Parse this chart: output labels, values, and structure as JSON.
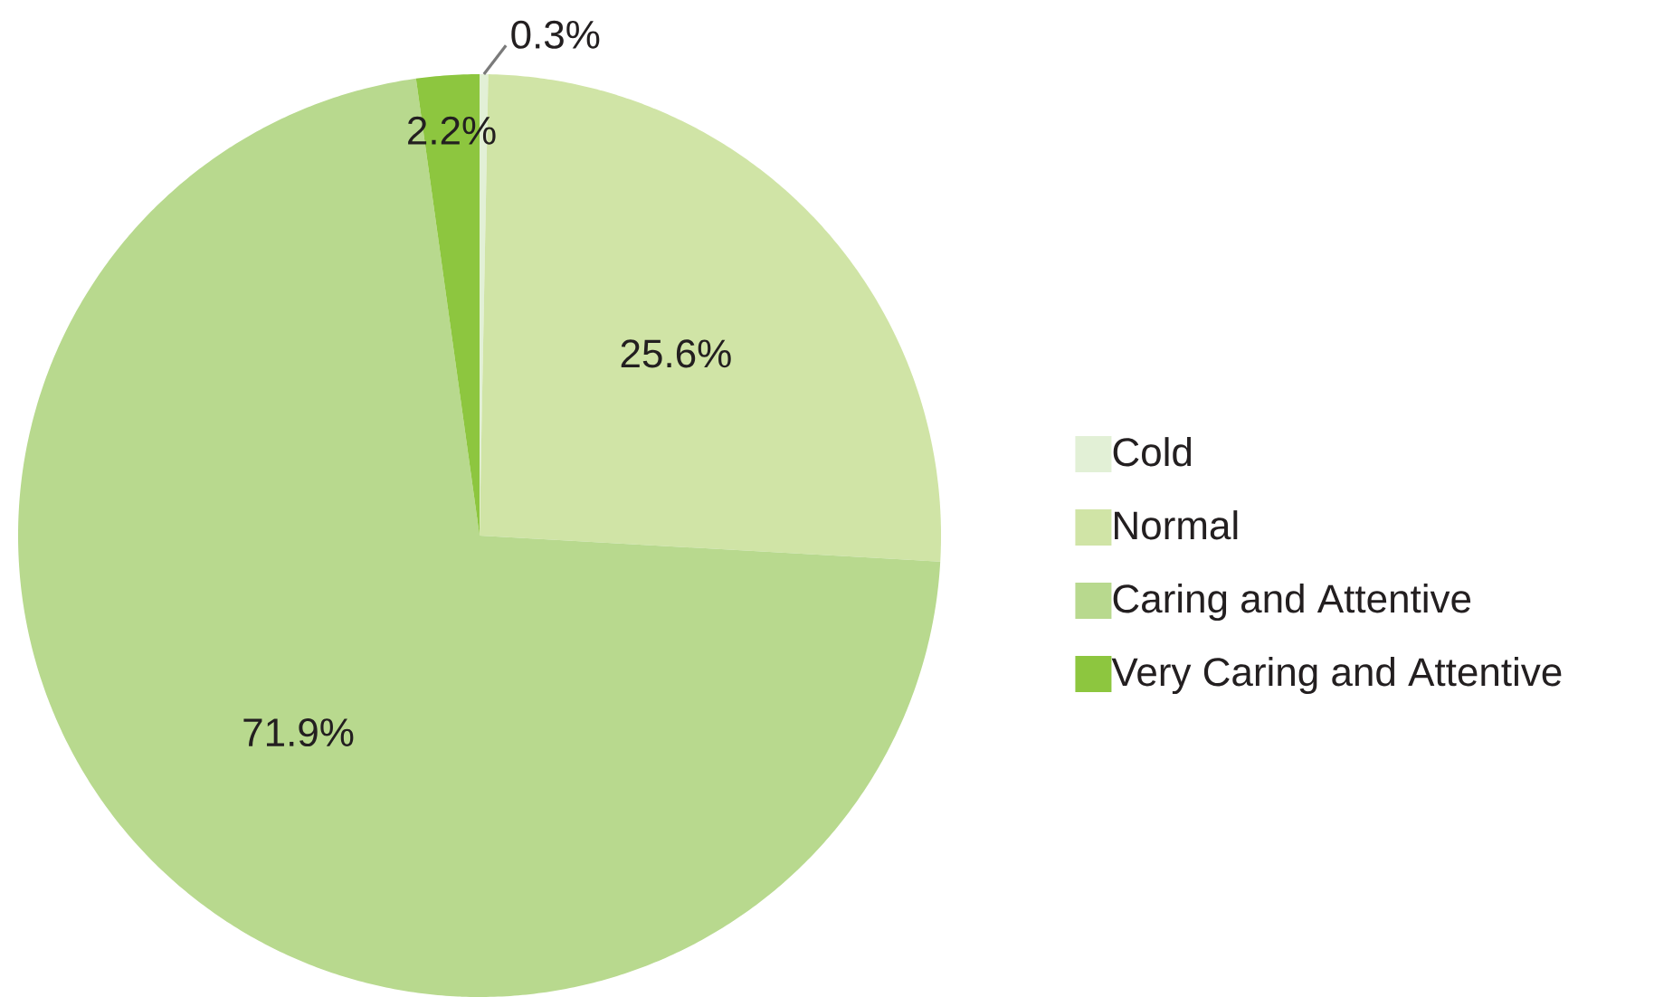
{
  "chart_data": {
    "type": "pie",
    "categories": [
      "Cold",
      "Normal",
      "Caring and Attentive",
      "Very Caring and Attentive"
    ],
    "values": [
      0.3,
      25.6,
      71.9,
      2.2
    ],
    "colors": [
      "#e2f0d6",
      "#d0e4a6",
      "#b8d98e",
      "#8dc63f"
    ],
    "value_labels": [
      "0.3%",
      "25.6%",
      "71.9%",
      "2.2%"
    ],
    "legend": "right"
  }
}
